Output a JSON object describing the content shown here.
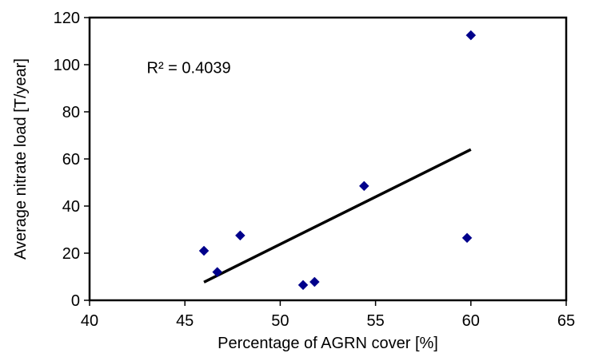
{
  "chart_data": {
    "type": "scatter",
    "xlabel": "Percentage of AGRN cover [%]",
    "ylabel": "Average nitrate load [T/year]",
    "xlim": [
      40,
      65
    ],
    "ylim": [
      0,
      120
    ],
    "x_ticks": [
      40,
      45,
      50,
      55,
      60,
      65
    ],
    "y_ticks": [
      0,
      20,
      40,
      60,
      80,
      100,
      120
    ],
    "x_tick_labels": [
      "40",
      "45",
      "50",
      "55",
      "60",
      "65"
    ],
    "y_tick_labels": [
      "0",
      "20",
      "40",
      "60",
      "80",
      "100",
      "120"
    ],
    "grid": false,
    "legend": "none",
    "marker": "diamond",
    "marker_color": "#00008B",
    "points": [
      {
        "x": 46.0,
        "y": 21.0
      },
      {
        "x": 46.7,
        "y": 12.0
      },
      {
        "x": 47.9,
        "y": 27.5
      },
      {
        "x": 51.2,
        "y": 6.5
      },
      {
        "x": 51.8,
        "y": 7.8
      },
      {
        "x": 54.4,
        "y": 48.5
      },
      {
        "x": 59.8,
        "y": 26.5
      },
      {
        "x": 60.0,
        "y": 112.5
      }
    ],
    "trendline": {
      "type": "linear",
      "color": "#000000",
      "from": {
        "x": 46.0,
        "y": 7.7
      },
      "to": {
        "x": 60.0,
        "y": 64.0
      }
    },
    "annotation": {
      "text": "R² = 0.4039",
      "x": 43.0,
      "y": 96.5
    }
  }
}
